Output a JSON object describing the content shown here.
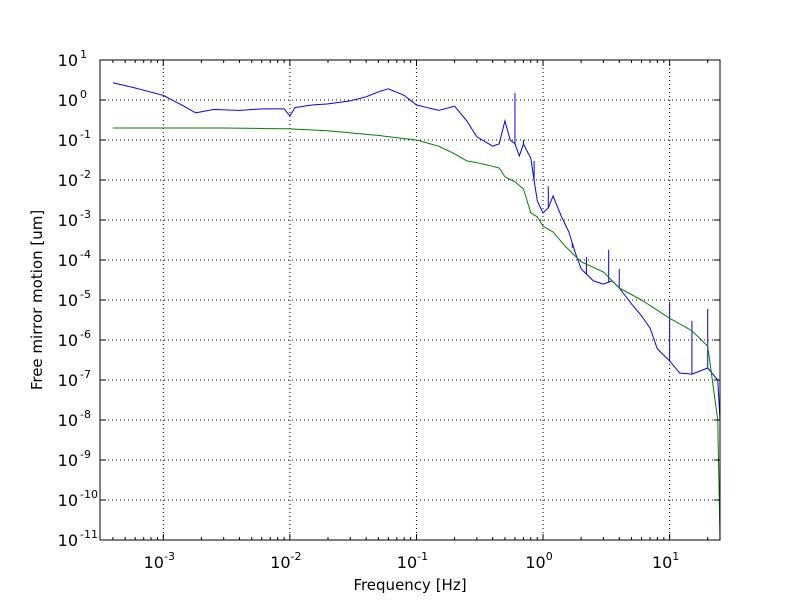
{
  "chart_data": {
    "type": "line",
    "title": "",
    "xlabel": "Frequency [Hz]",
    "ylabel": "Free mirror motion [um]",
    "x_scale": "log",
    "y_scale": "log",
    "xlim": [
      0.0003162,
      25
    ],
    "ylim": [
      1e-11,
      10
    ],
    "grid": true,
    "grid_style": "dotted",
    "legend": "none",
    "x_ticks": [
      {
        "base": "10",
        "exp": "-3",
        "value": 0.001
      },
      {
        "base": "10",
        "exp": "-2",
        "value": 0.01
      },
      {
        "base": "10",
        "exp": "-1",
        "value": 0.1
      },
      {
        "base": "10",
        "exp": "0",
        "value": 1
      },
      {
        "base": "10",
        "exp": "1",
        "value": 10
      }
    ],
    "y_ticks": [
      {
        "base": "10",
        "exp": "1",
        "value": 10
      },
      {
        "base": "10",
        "exp": "0",
        "value": 1
      },
      {
        "base": "10",
        "exp": "-1",
        "value": 0.1
      },
      {
        "base": "10",
        "exp": "-2",
        "value": 0.01
      },
      {
        "base": "10",
        "exp": "-3",
        "value": 0.001
      },
      {
        "base": "10",
        "exp": "-4",
        "value": 0.0001
      },
      {
        "base": "10",
        "exp": "-5",
        "value": 1e-05
      },
      {
        "base": "10",
        "exp": "-6",
        "value": 1e-06
      },
      {
        "base": "10",
        "exp": "-7",
        "value": 1e-07
      },
      {
        "base": "10",
        "exp": "-8",
        "value": 1e-08
      },
      {
        "base": "10",
        "exp": "-9",
        "value": 1e-09
      },
      {
        "base": "10",
        "exp": "-10",
        "value": 1e-10
      },
      {
        "base": "10",
        "exp": "-11",
        "value": 1e-11
      }
    ],
    "series": [
      {
        "color": "#0000ff",
        "x": [
          0.0004,
          0.0006,
          0.001,
          0.0014,
          0.0018,
          0.0025,
          0.004,
          0.006,
          0.009,
          0.01,
          0.011,
          0.015,
          0.02,
          0.03,
          0.04,
          0.05,
          0.06,
          0.08,
          0.1,
          0.15,
          0.2,
          0.25,
          0.3,
          0.4,
          0.45,
          0.5,
          0.55,
          0.6,
          0.65,
          0.7,
          0.8,
          0.9,
          1.0,
          1.1,
          1.2,
          1.4,
          1.6,
          1.8,
          2.0,
          2.5,
          3.0,
          3.5,
          4,
          5,
          6,
          7,
          8,
          10,
          12,
          15,
          20,
          24,
          25
        ],
        "y": [
          2.7,
          2.0,
          1.3,
          0.75,
          0.48,
          0.58,
          0.55,
          0.6,
          0.6,
          0.4,
          0.65,
          0.75,
          0.8,
          0.95,
          1.2,
          1.6,
          1.9,
          1.3,
          0.75,
          0.55,
          0.7,
          0.3,
          0.12,
          0.07,
          0.08,
          0.3,
          0.1,
          0.08,
          0.04,
          0.08,
          0.035,
          0.003,
          0.0015,
          0.002,
          0.004,
          0.0012,
          0.0005,
          0.00015,
          6e-05,
          3e-05,
          2.5e-05,
          3e-05,
          2e-05,
          8e-06,
          4e-06,
          2e-06,
          6e-07,
          3e-07,
          1.5e-07,
          1.4e-07,
          2e-07,
          1e-07,
          1e-08
        ],
        "peaks": [
          {
            "x": 0.6,
            "y": 1.5
          },
          {
            "x": 0.7,
            "y": 0.1
          },
          {
            "x": 0.85,
            "y": 0.03
          },
          {
            "x": 1.1,
            "y": 0.007
          },
          {
            "x": 1.7,
            "y": 0.0002
          },
          {
            "x": 2.2,
            "y": 0.00012
          },
          {
            "x": 3.3,
            "y": 0.00018
          },
          {
            "x": 4,
            "y": 6e-05
          },
          {
            "x": 10,
            "y": 9e-06
          },
          {
            "x": 15,
            "y": 3e-06
          },
          {
            "x": 20,
            "y": 6e-06
          }
        ]
      },
      {
        "color": "#008000",
        "x": [
          0.0004,
          0.001,
          0.003,
          0.01,
          0.02,
          0.05,
          0.1,
          0.15,
          0.2,
          0.25,
          0.3,
          0.4,
          0.45,
          0.5,
          0.6,
          0.7,
          0.8,
          0.9,
          1.0,
          1.2,
          1.5,
          2.0,
          3.0,
          4.0,
          6.0,
          10,
          15,
          20,
          24,
          25
        ],
        "y": [
          0.2,
          0.2,
          0.2,
          0.19,
          0.17,
          0.13,
          0.1,
          0.07,
          0.045,
          0.03,
          0.027,
          0.022,
          0.02,
          0.012,
          0.009,
          0.006,
          0.0015,
          0.0012,
          0.0007,
          0.0005,
          0.00022,
          9e-05,
          5e-05,
          2e-05,
          1e-05,
          3.5e-06,
          1.7e-06,
          7e-07,
          1e-08,
          1e-11
        ]
      }
    ]
  }
}
